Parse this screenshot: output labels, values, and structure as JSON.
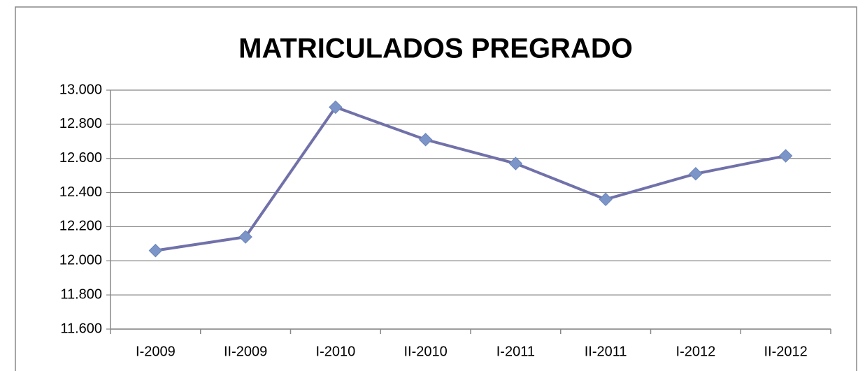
{
  "chart_data": {
    "type": "line",
    "title": "MATRICULADOS PREGRADO",
    "categories": [
      "I-2009",
      "II-2009",
      "I-2010",
      "II-2010",
      "I-2011",
      "II-2011",
      "I-2012",
      "II-2012"
    ],
    "values": [
      12060,
      12140,
      12900,
      12710,
      12570,
      12360,
      12510,
      12615
    ],
    "color": "#7171aa",
    "marker_color": "#7b95c9",
    "ylim": [
      11600,
      13000
    ],
    "yticks": [
      {
        "value": 11600,
        "label": "11.600"
      },
      {
        "value": 11800,
        "label": "11.800"
      },
      {
        "value": 12000,
        "label": "12.000"
      },
      {
        "value": 12200,
        "label": "12.200"
      },
      {
        "value": 12400,
        "label": "12.400"
      },
      {
        "value": 12600,
        "label": "12.600"
      },
      {
        "value": 12800,
        "label": "12.800"
      },
      {
        "value": 13000,
        "label": "13.000"
      }
    ],
    "grid": true
  }
}
